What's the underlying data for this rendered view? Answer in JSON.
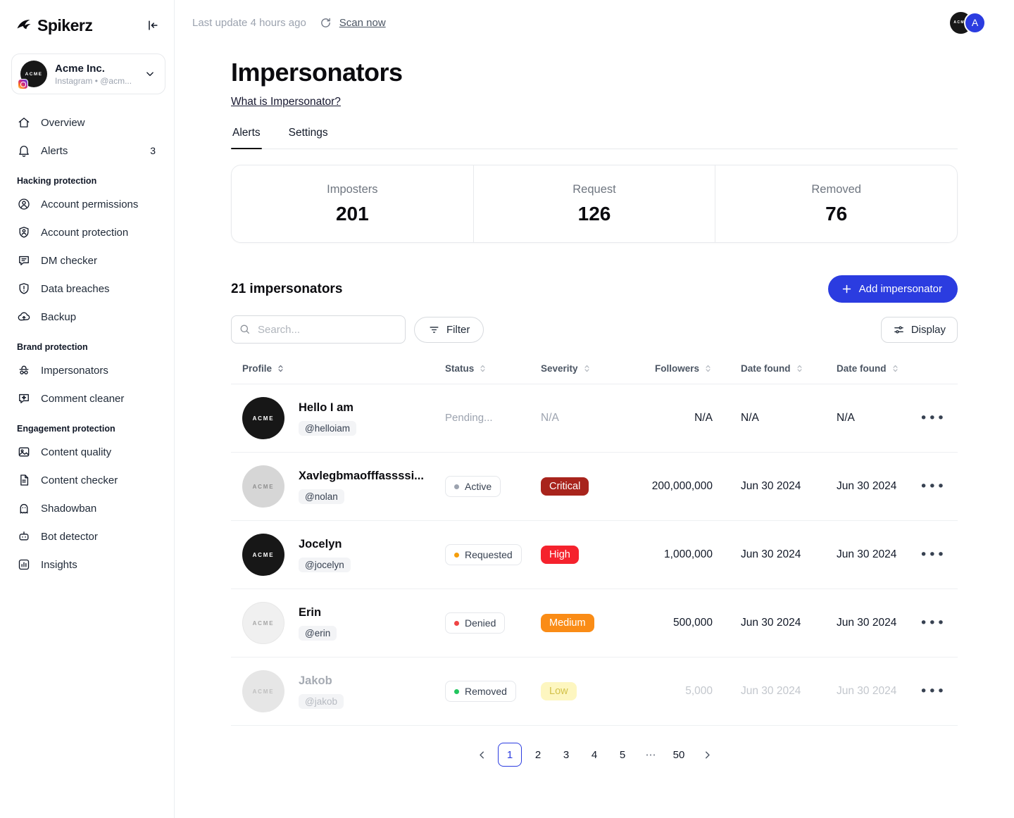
{
  "accent": "#2b3ce0",
  "sidebar": {
    "logo_text": "Spikerz",
    "account": {
      "name": "Acme Inc.",
      "subtitle": "Instagram • @acm...",
      "avatar_text": "ACME"
    },
    "sections": [
      {
        "header": null,
        "items": [
          {
            "id": "overview",
            "label": "Overview",
            "icon": "home"
          },
          {
            "id": "alerts",
            "label": "Alerts",
            "icon": "bell",
            "badge": "3"
          }
        ]
      },
      {
        "header": "Hacking protection",
        "items": [
          {
            "id": "account-permissions",
            "label": "Account permissions",
            "icon": "user-badge"
          },
          {
            "id": "account-protection",
            "label": "Account protection",
            "icon": "shield-user"
          },
          {
            "id": "dm-checker",
            "label": "DM checker",
            "icon": "message"
          },
          {
            "id": "data-breaches",
            "label": "Data breaches",
            "icon": "shield-alert"
          },
          {
            "id": "backup",
            "label": "Backup",
            "icon": "cloud"
          }
        ]
      },
      {
        "header": "Brand protection",
        "items": [
          {
            "id": "impersonators",
            "label": "Impersonators",
            "icon": "mask",
            "active": true
          },
          {
            "id": "comment-cleaner",
            "label": "Comment cleaner",
            "icon": "message-sparkle"
          }
        ]
      },
      {
        "header": "Engagement protection",
        "items": [
          {
            "id": "content-quality",
            "label": "Content quality",
            "icon": "image"
          },
          {
            "id": "content-checker",
            "label": "Content checker",
            "icon": "file"
          },
          {
            "id": "shadowban",
            "label": "Shadowban",
            "icon": "ghost"
          },
          {
            "id": "bot-detector",
            "label": "Bot detector",
            "icon": "bot"
          },
          {
            "id": "insights",
            "label": "Insights",
            "icon": "chart"
          }
        ]
      }
    ]
  },
  "topbar": {
    "last_update": "Last update 4 hours ago",
    "scan_now": "Scan now",
    "workspace_avatar_text": "ACME",
    "user_initial": "A"
  },
  "page": {
    "title": "Impersonators",
    "help_link": "What is Impersonator?",
    "tabs": [
      {
        "label": "Alerts",
        "active": true
      },
      {
        "label": "Settings",
        "active": false
      }
    ]
  },
  "stats": [
    {
      "label": "Imposters",
      "value": "201"
    },
    {
      "label": "Request",
      "value": "126"
    },
    {
      "label": "Removed",
      "value": "76"
    }
  ],
  "list": {
    "count_label": "21 impersonators",
    "add_button": "Add impersonator",
    "search_placeholder": "Search...",
    "filter_label": "Filter",
    "display_label": "Display"
  },
  "table": {
    "columns": [
      "Profile",
      "Status",
      "Severity",
      "Followers",
      "Date found",
      "Date found"
    ],
    "rows": [
      {
        "name": "Hello I am",
        "handle": "@helloiam",
        "avatar": "dark",
        "avatar_text": "ACME",
        "status": {
          "kind": "plain",
          "text": "Pending..."
        },
        "severity": null,
        "severity_na": "N/A",
        "followers": "N/A",
        "date_found_1": "N/A",
        "date_found_2": "N/A",
        "muted": false
      },
      {
        "name": "Xavlegbmaofffassssi...",
        "handle": "@nolan",
        "avatar": "gray",
        "avatar_text": "ACME",
        "status": {
          "kind": "chip",
          "text": "Active",
          "dot": "#9ca3af"
        },
        "severity": {
          "text": "Critical",
          "bg": "#a8241c",
          "color": "#ffffff"
        },
        "followers": "200,000,000",
        "date_found_1": "Jun 30 2024",
        "date_found_2": "Jun 30 2024",
        "muted": false
      },
      {
        "name": "Jocelyn",
        "handle": "@jocelyn",
        "avatar": "dark",
        "avatar_text": "ACME",
        "status": {
          "kind": "chip",
          "text": "Requested",
          "dot": "#f59e0b"
        },
        "severity": {
          "text": "High",
          "bg": "#f5222d",
          "color": "#ffffff"
        },
        "followers": "1,000,000",
        "date_found_1": "Jun 30 2024",
        "date_found_2": "Jun 30 2024",
        "muted": false
      },
      {
        "name": "Erin",
        "handle": "@erin",
        "avatar": "light",
        "avatar_text": "ACME",
        "status": {
          "kind": "chip",
          "text": "Denied",
          "dot": "#ef4444"
        },
        "severity": {
          "text": "Medium",
          "bg": "#fa8c16",
          "color": "#ffffff"
        },
        "followers": "500,000",
        "date_found_1": "Jun 30 2024",
        "date_found_2": "Jun 30 2024",
        "muted": false
      },
      {
        "name": "Jakob",
        "handle": "@jakob",
        "avatar": "faded",
        "avatar_text": "ACME",
        "status": {
          "kind": "chip",
          "text": "Removed",
          "dot": "#22c55e"
        },
        "severity": {
          "text": "Low",
          "bg": "#fdf6c0",
          "color": "#d3c24a"
        },
        "followers": "5,000",
        "date_found_1": "Jun 30 2024",
        "date_found_2": "Jun 30 2024",
        "muted": true
      }
    ]
  },
  "pagination": {
    "pages": [
      "1",
      "2",
      "3",
      "4",
      "5",
      "⋯",
      "50"
    ],
    "active": "1"
  }
}
